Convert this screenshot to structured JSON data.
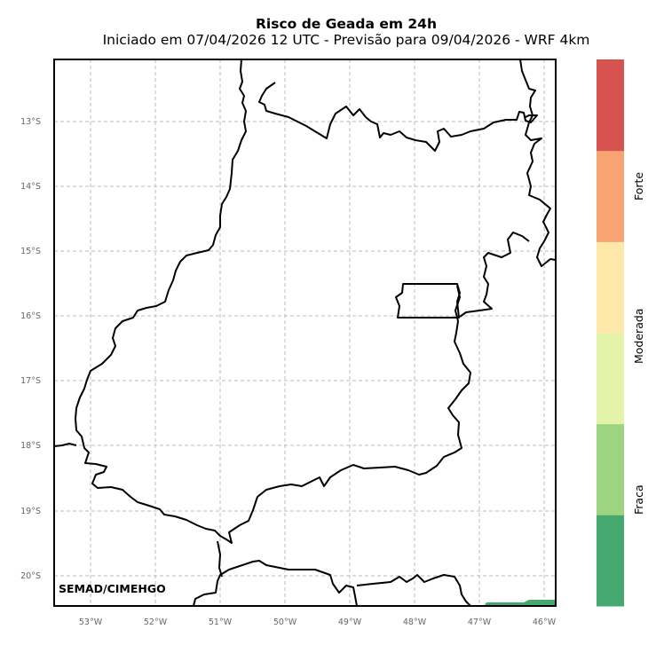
{
  "title": "Risco de Geada em 24h",
  "subtitle": "Iniciado em 07/04/2026 12 UTC - Previsão para 09/04/2026 - WRF 4km",
  "credit": "SEMAD/CIMEHGO",
  "lat_ticks": [
    "13°S",
    "14°S",
    "15°S",
    "16°S",
    "17°S",
    "18°S",
    "19°S",
    "20°S"
  ],
  "lon_ticks": [
    "53°W",
    "52°W",
    "51°W",
    "50°W",
    "49°W",
    "48°W",
    "47°W",
    "46°W"
  ],
  "colorbar": {
    "colors": [
      "#45a86e",
      "#9dd47f",
      "#e3f3aa",
      "#fde8a9",
      "#f7a472",
      "#d75350"
    ],
    "labels": [
      "Fraca",
      "Moderada",
      "Forte"
    ]
  },
  "colors": {
    "frost_area": "#45a86e",
    "grid": "#bbbbbb",
    "border": "#000000"
  }
}
